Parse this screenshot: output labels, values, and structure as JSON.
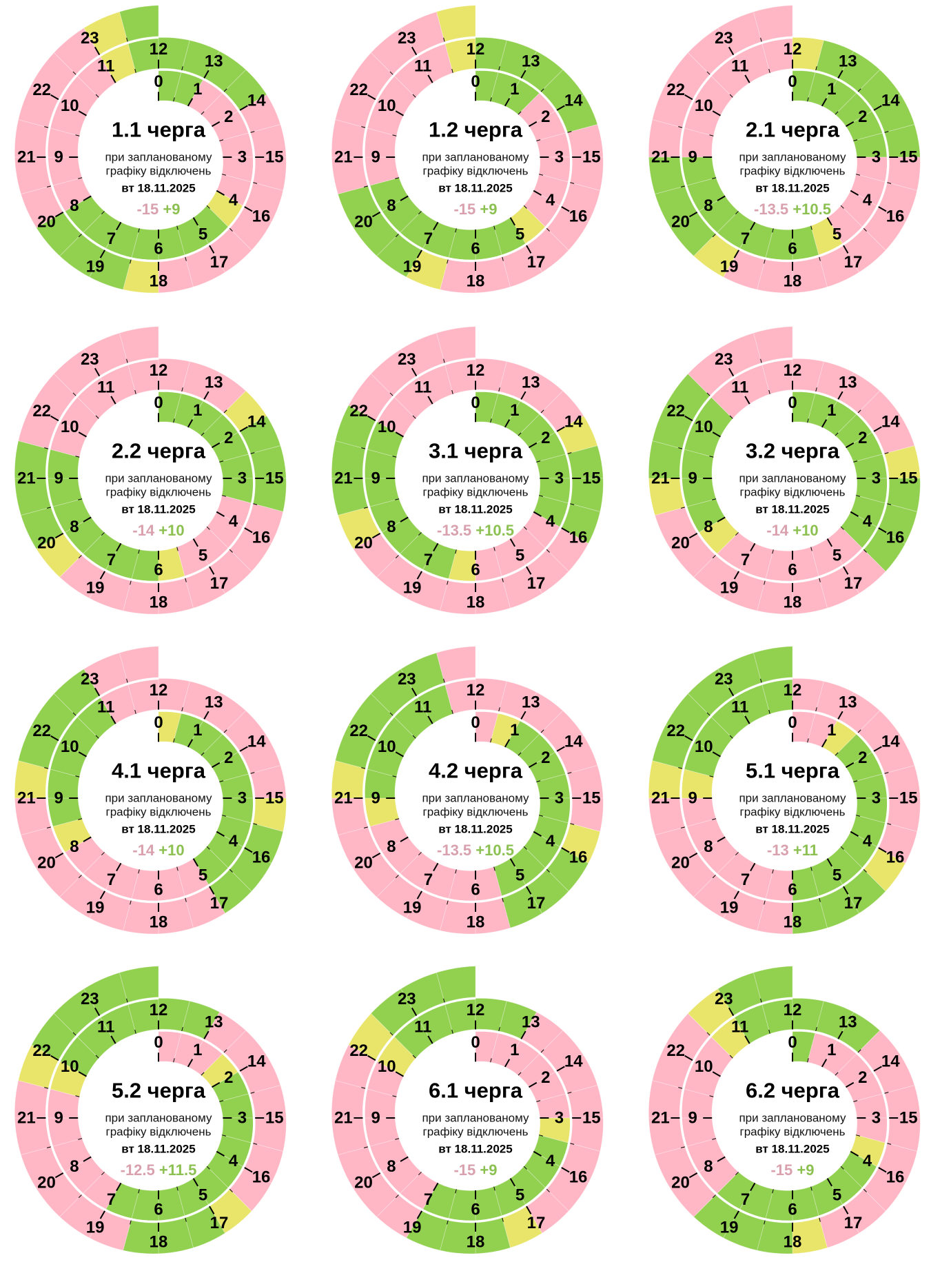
{
  "colors": {
    "G": "#92d050",
    "P": "#ffb7c5",
    "Y": "#e8e56a",
    "minus_text": "#d9a0ae",
    "plus_text": "#8cc152"
  },
  "legend_codes": {
    "G": "power on",
    "P": "outage",
    "Y": "possible outage"
  },
  "chart_data": [
    {
      "type": "radial-schedule",
      "title": "1.1 черга",
      "sub1": "при запланованому",
      "sub2": "графіку відключень",
      "date": "вт 18.11.2025",
      "minus": "-15",
      "plus": "+9",
      "hours": [
        "GG",
        "PP",
        "PP",
        "PP",
        "YG",
        "GG",
        "GG",
        "GG",
        "PP",
        "PP",
        "PP",
        "YG",
        "GG",
        "GG",
        "PP",
        "PP",
        "PP",
        "PP",
        "YG",
        "GG",
        "PP",
        "PP",
        "PP",
        "YG"
      ]
    },
    {
      "type": "radial-schedule",
      "title": "1.2 черга",
      "sub1": "при запланованому",
      "sub2": "графіку відключень",
      "date": "вт 18.11.2025",
      "minus": "-15",
      "plus": "+9",
      "hours": [
        "GG",
        "GP",
        "PP",
        "PP",
        "PY",
        "GG",
        "GG",
        "GG",
        "GP",
        "PP",
        "PP",
        "PY",
        "GG",
        "GG",
        "GP",
        "PP",
        "PP",
        "PP",
        "PY",
        "GG",
        "GP",
        "PP",
        "PP",
        "PY"
      ]
    },
    {
      "type": "radial-schedule",
      "title": "2.1 черга",
      "sub1": "при запланованому",
      "sub2": "графіку відключень",
      "date": "вт 18.11.2025",
      "minus": "-13.5",
      "plus": "+10.5",
      "hours": [
        "GG",
        "GG",
        "GG",
        "PP",
        "PP",
        "YG",
        "GG",
        "GG",
        "GG",
        "PP",
        "PP",
        "PP",
        "YG",
        "GG",
        "GG",
        "PP",
        "PP",
        "PP",
        "PP",
        "YG",
        "GG",
        "PP",
        "PP",
        "PP"
      ]
    },
    {
      "type": "radial-schedule",
      "title": "2.2 черга",
      "sub1": "при запланованому",
      "sub2": "графіку відключень",
      "date": "вт 18.11.2025",
      "minus": "-14",
      "plus": "+10",
      "hours": [
        "GG",
        "GG",
        "GG",
        "GP",
        "PP",
        "PY",
        "GG",
        "GG",
        "GG",
        "GP",
        "PP",
        "PP",
        "PP",
        "PY",
        "GG",
        "GP",
        "PP",
        "PP",
        "PP",
        "PY",
        "GG",
        "GP",
        "PP",
        "PP"
      ]
    },
    {
      "type": "radial-schedule",
      "title": "3.1 черга",
      "sub1": "при запланованому",
      "sub2": "графіку відключень",
      "date": "вт 18.11.2025",
      "minus": "-13.5",
      "plus": "+10.5",
      "hours": [
        "GG",
        "GG",
        "GG",
        "GG",
        "PP",
        "PP",
        "YG",
        "GG",
        "GG",
        "GG",
        "PP",
        "PP",
        "PP",
        "PP",
        "YG",
        "GG",
        "PP",
        "PP",
        "PP",
        "PP",
        "YG",
        "GG",
        "PP",
        "PP"
      ]
    },
    {
      "type": "radial-schedule",
      "title": "3.2 черга",
      "sub1": "при запланованому",
      "sub2": "графіку відключень",
      "date": "вт 18.11.2025",
      "minus": "-14",
      "plus": "+10",
      "hours": [
        "GG",
        "GG",
        "GG",
        "GG",
        "GP",
        "PP",
        "PP",
        "PY",
        "GG",
        "GG",
        "GP",
        "PP",
        "PP",
        "PP",
        "PY",
        "GG",
        "GP",
        "PP",
        "PP",
        "PP",
        "PY",
        "GG",
        "GP",
        "PP"
      ]
    },
    {
      "type": "radial-schedule",
      "title": "4.1 черга",
      "sub1": "при запланованому",
      "sub2": "графіку відключень",
      "date": "вт 18.11.2025",
      "minus": "-14",
      "plus": "+10",
      "hours": [
        "YG",
        "GG",
        "GG",
        "GG",
        "GG",
        "PP",
        "PP",
        "PP",
        "YG",
        "GG",
        "GG",
        "PP",
        "PP",
        "PP",
        "PP",
        "YG",
        "GG",
        "PP",
        "PP",
        "PP",
        "PP",
        "YG",
        "GG",
        "PP"
      ]
    },
    {
      "type": "radial-schedule",
      "title": "4.2 черга",
      "sub1": "при запланованому",
      "sub2": "графіку відключень",
      "date": "вт 18.11.2025",
      "minus": "-13.5",
      "plus": "+10.5",
      "hours": [
        "PY",
        "GG",
        "GG",
        "GG",
        "GG",
        "GP",
        "PP",
        "PP",
        "PY",
        "GG",
        "GG",
        "GP",
        "PP",
        "PP",
        "PP",
        "PY",
        "GG",
        "GP",
        "PP",
        "PP",
        "PP",
        "YG",
        "GG",
        "GP"
      ]
    },
    {
      "type": "radial-schedule",
      "title": "5.1 черга",
      "sub1": "при запланованому",
      "sub2": "графіку відключень",
      "date": "вт 18.11.2025",
      "minus": "-13",
      "plus": "+11",
      "hours": [
        "PP",
        "YG",
        "GG",
        "GG",
        "GG",
        "GG",
        "PP",
        "PP",
        "PP",
        "YG",
        "GG",
        "GG",
        "PP",
        "PP",
        "PP",
        "PP",
        "YG",
        "GG",
        "PP",
        "PP",
        "PP",
        "YG",
        "GG",
        "GG"
      ]
    },
    {
      "type": "radial-schedule",
      "title": "5.2 черга",
      "sub1": "при запланованому",
      "sub2": "графіку відключень",
      "date": "вт 18.11.2025",
      "minus": "-12.5",
      "plus": "+11.5",
      "hours": [
        "PP",
        "PY",
        "GG",
        "GG",
        "GG",
        "GG",
        "GG",
        "PP",
        "PP",
        "PY",
        "GG",
        "GG",
        "GG",
        "PP",
        "PP",
        "PP",
        "PY",
        "GG",
        "GP",
        "PP",
        "PP",
        "PY",
        "GG",
        "GG"
      ]
    },
    {
      "type": "radial-schedule",
      "title": "6.1 черга",
      "sub1": "при запланованому",
      "sub2": "графіку відключень",
      "date": "вт 18.11.2025",
      "minus": "-15",
      "plus": "+9",
      "hours": [
        "PP",
        "PP",
        "PP",
        "YG",
        "GG",
        "GG",
        "GG",
        "PP",
        "PP",
        "PP",
        "YG",
        "GG",
        "GG",
        "PP",
        "PP",
        "PP",
        "PP",
        "YG",
        "GG",
        "PP",
        "PP",
        "PP",
        "YG",
        "GG"
      ]
    },
    {
      "type": "radial-schedule",
      "title": "6.2 черга",
      "sub1": "при запланованому",
      "sub2": "графіку відключень",
      "date": "вт 18.11.2025",
      "minus": "-15",
      "plus": "+9",
      "hours": [
        "GP",
        "PP",
        "PP",
        "PY",
        "GG",
        "GG",
        "GG",
        "GP",
        "PP",
        "PP",
        "PY",
        "GG",
        "GG",
        "GP",
        "PP",
        "PP",
        "PP",
        "PY",
        "GG",
        "GP",
        "PP",
        "PP",
        "PY",
        "GG"
      ]
    }
  ]
}
